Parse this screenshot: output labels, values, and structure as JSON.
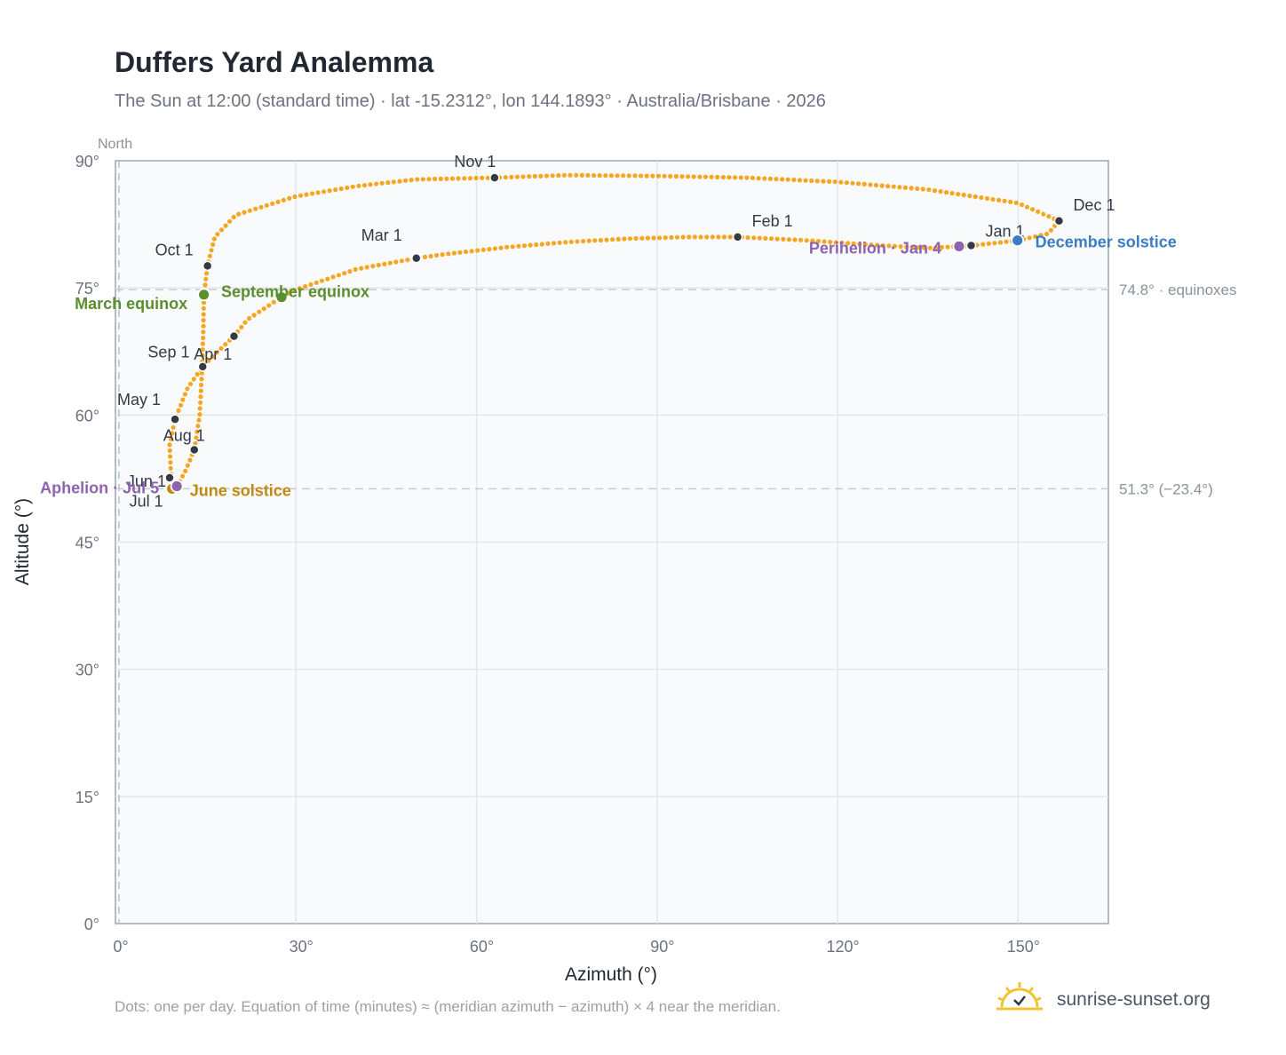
{
  "title": "Duffers Yard Analemma",
  "subtitle": "The Sun at 12:00 (standard time) · lat -15.2312°, lon 144.1893° · Australia/Brisbane · 2026",
  "footnote": "Dots: one per day. Equation of time (minutes) ≈ (meridian azimuth − azimuth) × 4 near the meridian.",
  "brand": "sunrise-sunset.org",
  "colors": {
    "path": "#f5a623",
    "month_marker": "#333a44",
    "equinox": "#5a8f2e",
    "solstice_june": "#c08a12",
    "solstice_dec": "#3b7dc4",
    "apsis": "#8e63b0",
    "axis_text": "#6b7280",
    "reference_text": "#8a929c",
    "plot_bg": "#f8fafc"
  },
  "chart_data": {
    "type": "scatter",
    "xlabel": "Azimuth (°)",
    "ylabel": "Altitude (°)",
    "xlim": [
      0,
      165
    ],
    "ylim": [
      0,
      90
    ],
    "x_ticks": [
      0,
      30,
      60,
      90,
      120,
      150
    ],
    "x_tick_labels": [
      "0°",
      "30°",
      "60°",
      "90°",
      "120°",
      "150°"
    ],
    "y_ticks": [
      0,
      15,
      30,
      45,
      60,
      75,
      90
    ],
    "y_tick_labels": [
      "0°",
      "15°",
      "30°",
      "45°",
      "60°",
      "75°",
      "90°"
    ],
    "grid": true,
    "reference_lines": [
      {
        "axis": "x",
        "value": 0,
        "label": "North"
      },
      {
        "axis": "y",
        "value": 74.8,
        "label": "74.8° · equinoxes"
      },
      {
        "axis": "y",
        "value": 51.3,
        "label": "51.3° (−23.4°)"
      }
    ],
    "path_anchors": [
      [
        142.2,
        80.0
      ],
      [
        140.2,
        79.9
      ],
      [
        135.0,
        79.7
      ],
      [
        125.0,
        80.1
      ],
      [
        115.0,
        80.6
      ],
      [
        103.4,
        81.0
      ],
      [
        95.0,
        81.0
      ],
      [
        85.0,
        80.8
      ],
      [
        75.0,
        80.4
      ],
      [
        65.0,
        79.8
      ],
      [
        55.0,
        79.0
      ],
      [
        50.0,
        78.5
      ],
      [
        40.0,
        77.2
      ],
      [
        30.0,
        74.8
      ],
      [
        27.6,
        73.9
      ],
      [
        22.0,
        71.3
      ],
      [
        19.7,
        69.3
      ],
      [
        16.0,
        66.8
      ],
      [
        14.5,
        65.7
      ],
      [
        12.0,
        63.2
      ],
      [
        9.9,
        59.5
      ],
      [
        9.0,
        56.5
      ],
      [
        9.2,
        53.5
      ],
      [
        9.4,
        51.5
      ],
      [
        10.2,
        51.6
      ],
      [
        11.5,
        53.2
      ],
      [
        13.1,
        55.9
      ],
      [
        14.0,
        60.0
      ],
      [
        14.4,
        65.5
      ],
      [
        14.6,
        70.0
      ],
      [
        14.7,
        74.2
      ],
      [
        15.3,
        77.6
      ],
      [
        16.5,
        81.0
      ],
      [
        20.0,
        83.6
      ],
      [
        30.0,
        85.8
      ],
      [
        40.0,
        87.0
      ],
      [
        50.0,
        87.8
      ],
      [
        63.0,
        88.0
      ],
      [
        75.0,
        88.3
      ],
      [
        90.0,
        88.2
      ],
      [
        105.0,
        88.0
      ],
      [
        120.0,
        87.5
      ],
      [
        135.0,
        86.6
      ],
      [
        150.0,
        85.0
      ],
      [
        156.8,
        82.9
      ],
      [
        155.0,
        81.4
      ],
      [
        150.0,
        80.6
      ],
      [
        145.0,
        80.2
      ],
      [
        142.2,
        80.0
      ]
    ],
    "month_markers": [
      {
        "label": "Jan 1",
        "x": 142.2,
        "y": 80.0
      },
      {
        "label": "Feb 1",
        "x": 103.4,
        "y": 81.0
      },
      {
        "label": "Mar 1",
        "x": 50.0,
        "y": 78.5
      },
      {
        "label": "Apr 1",
        "x": 14.5,
        "y": 65.7
      },
      {
        "label": "May 1",
        "x": 9.9,
        "y": 59.5
      },
      {
        "label": "Jun 1",
        "x": 9.0,
        "y": 52.6
      },
      {
        "label": "Jul 1",
        "x": 9.4,
        "y": 51.5
      },
      {
        "label": "Aug 1",
        "x": 13.1,
        "y": 55.9
      },
      {
        "label": "Sep 1",
        "x": 19.7,
        "y": 69.3
      },
      {
        "label": "Oct 1",
        "x": 15.3,
        "y": 77.6
      },
      {
        "label": "Nov 1",
        "x": 63.0,
        "y": 88.0
      },
      {
        "label": "Dec 1",
        "x": 156.8,
        "y": 82.9
      }
    ],
    "events": [
      {
        "label": "March equinox",
        "x": 14.7,
        "y": 74.2,
        "color": "equinox"
      },
      {
        "label": "September equinox",
        "x": 27.6,
        "y": 73.9,
        "color": "equinox"
      },
      {
        "label": "June solstice",
        "x": 9.4,
        "y": 51.3,
        "color": "solstice_june"
      },
      {
        "label": "December solstice",
        "x": 149.9,
        "y": 80.6,
        "color": "solstice_dec"
      },
      {
        "label": "Perihelion · Jan 4",
        "x": 140.2,
        "y": 79.9,
        "color": "apsis"
      },
      {
        "label": "Aphelion · Jul 5",
        "x": 10.2,
        "y": 51.6,
        "color": "apsis"
      }
    ]
  }
}
